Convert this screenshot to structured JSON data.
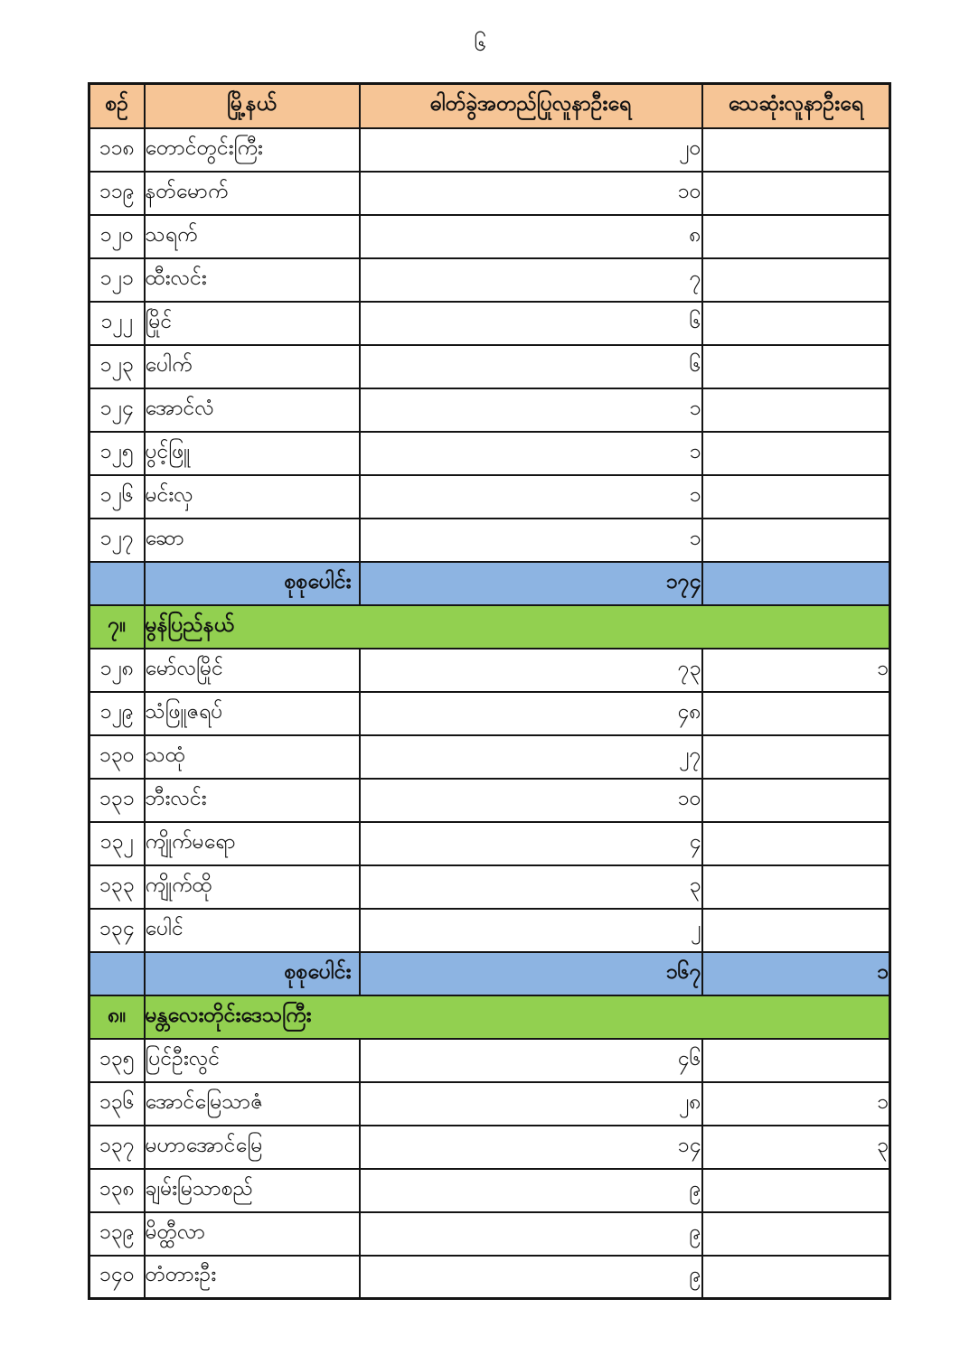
{
  "page_number": "၆",
  "colors": {
    "header_bg": "#F6C596",
    "total_bg": "#8DB4E2",
    "section_bg": "#92D050",
    "border": "#141414"
  },
  "table": {
    "headers": [
      {
        "label": "စဉ်"
      },
      {
        "label": "မြို့နယ်"
      },
      {
        "label": "ဓါတ်ခွဲအတည်ပြုလူနာဦးရေ"
      },
      {
        "label": "သေဆုံးလူနာဦးရေ"
      }
    ],
    "rows": [
      {
        "type": "data",
        "no": "၁၁၈",
        "township": "တောင်တွင်းကြီး",
        "confirmed": "၂၀",
        "deaths": ""
      },
      {
        "type": "data",
        "no": "၁၁၉",
        "township": "နတ်မောက်",
        "confirmed": "၁၀",
        "deaths": ""
      },
      {
        "type": "data",
        "no": "၁၂၀",
        "township": "သရက်",
        "confirmed": "၈",
        "deaths": ""
      },
      {
        "type": "data",
        "no": "၁၂၁",
        "township": "ထီးလင်း",
        "confirmed": "၇",
        "deaths": ""
      },
      {
        "type": "data",
        "no": "၁၂၂",
        "township": "မြိုင်",
        "confirmed": "၆",
        "deaths": ""
      },
      {
        "type": "data",
        "no": "၁၂၃",
        "township": "ပေါက်",
        "confirmed": "၆",
        "deaths": ""
      },
      {
        "type": "data",
        "no": "၁၂၄",
        "township": "အောင်လံ",
        "confirmed": "၁",
        "deaths": ""
      },
      {
        "type": "data",
        "no": "၁၂၅",
        "township": "ပွင့်ဖြူ",
        "confirmed": "၁",
        "deaths": ""
      },
      {
        "type": "data",
        "no": "၁၂၆",
        "township": "မင်းလှ",
        "confirmed": "၁",
        "deaths": ""
      },
      {
        "type": "data",
        "no": "၁၂၇",
        "township": "ဆော",
        "confirmed": "၁",
        "deaths": ""
      },
      {
        "type": "total",
        "label": "စုစုပေါင်း",
        "confirmed": "၁၇၄",
        "deaths": ""
      },
      {
        "type": "section",
        "no": "၇။",
        "label": "မွန်ပြည်နယ်"
      },
      {
        "type": "data",
        "no": "၁၂၈",
        "township": "မော်လမြိုင်",
        "confirmed": "၇၃",
        "deaths": "၁"
      },
      {
        "type": "data",
        "no": "၁၂၉",
        "township": "သံဖြူဇရပ်",
        "confirmed": "၄၈",
        "deaths": ""
      },
      {
        "type": "data",
        "no": "၁၃၀",
        "township": "သထုံ",
        "confirmed": "၂၇",
        "deaths": ""
      },
      {
        "type": "data",
        "no": "၁၃၁",
        "township": "ဘီးလင်း",
        "confirmed": "၁၀",
        "deaths": ""
      },
      {
        "type": "data",
        "no": "၁၃၂",
        "township": "ကျိုက်မရော",
        "confirmed": "၄",
        "deaths": ""
      },
      {
        "type": "data",
        "no": "၁၃၃",
        "township": "ကျိုက်ထို",
        "confirmed": "၃",
        "deaths": ""
      },
      {
        "type": "data",
        "no": "၁၃၄",
        "township": "ပေါင်",
        "confirmed": "၂",
        "deaths": ""
      },
      {
        "type": "total",
        "label": "စုစုပေါင်း",
        "confirmed": "၁၆၇",
        "deaths": "၁"
      },
      {
        "type": "section",
        "no": "၈။",
        "label": "မန္တလေးတိုင်းဒေသကြီး"
      },
      {
        "type": "data",
        "no": "၁၃၅",
        "township": "ပြင်ဦးလွင်",
        "confirmed": "၄၆",
        "deaths": ""
      },
      {
        "type": "data",
        "no": "၁၃၆",
        "township": "အောင်မြေသာဇံ",
        "confirmed": "၂၈",
        "deaths": "၁"
      },
      {
        "type": "data",
        "no": "၁၃၇",
        "township": "မဟာအောင်မြေ",
        "confirmed": "၁၄",
        "deaths": "၃"
      },
      {
        "type": "data",
        "no": "၁၃၈",
        "township": "ချမ်းမြသာစည်",
        "confirmed": "၉",
        "deaths": ""
      },
      {
        "type": "data",
        "no": "၁၃၉",
        "township": "မိတ္ထီလာ",
        "confirmed": "၉",
        "deaths": ""
      },
      {
        "type": "data",
        "no": "၁၄၀",
        "township": "တံတားဦး",
        "confirmed": "၉",
        "deaths": ""
      }
    ]
  }
}
